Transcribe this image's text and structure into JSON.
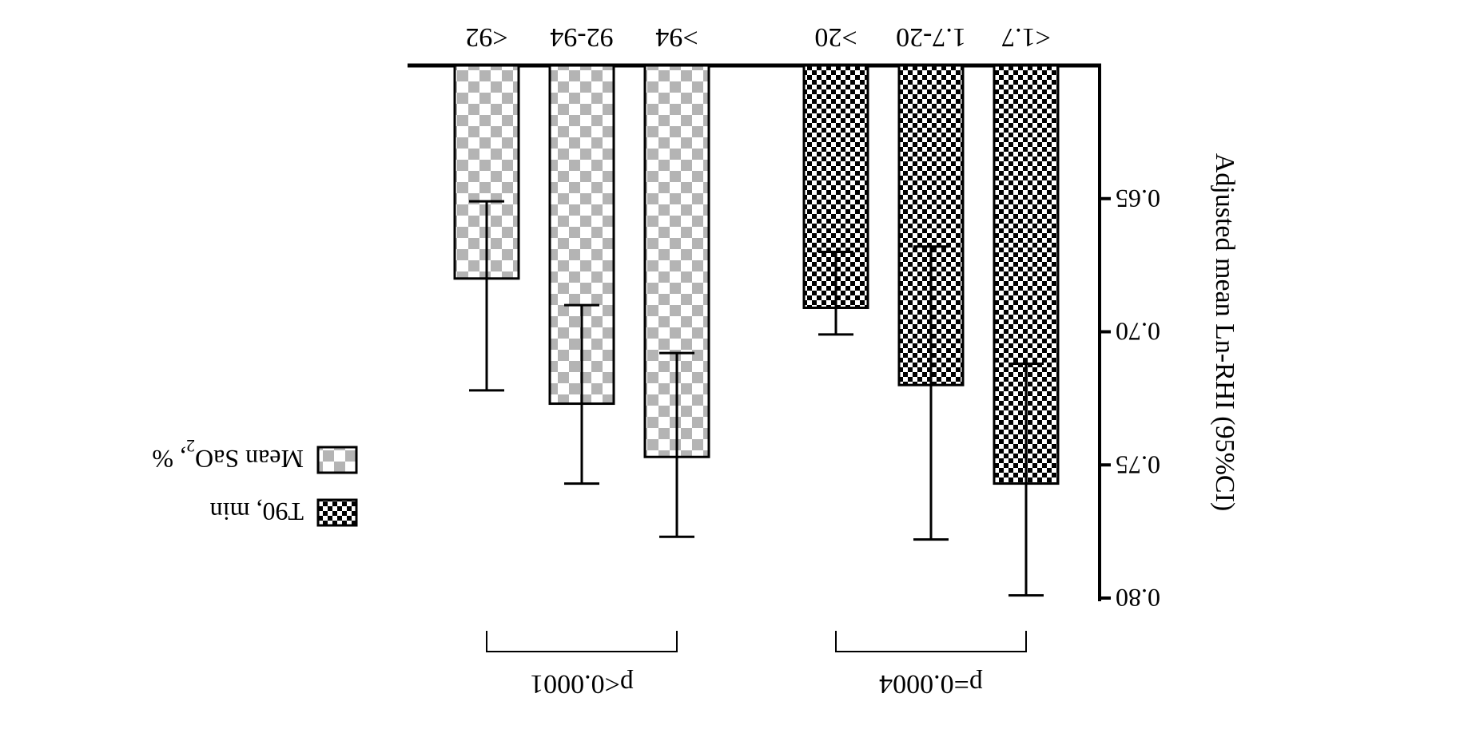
{
  "chart_data": {
    "type": "bar",
    "orientation": "rotated-180",
    "ylabel": "Adjusted mean Ln-RHI (95%CI)",
    "ylim": [
      0.6,
      0.8
    ],
    "yticks": [
      "0.65",
      "0.70",
      "0.75",
      "0.80"
    ],
    "ytick_values": [
      0.65,
      0.7,
      0.75,
      0.8
    ],
    "groups": [
      {
        "name": "T90, min",
        "pattern": "fine-checker",
        "categories": [
          "<1.7",
          "1.7-20",
          ">20"
        ],
        "values": [
          0.757,
          0.72,
          0.691
        ],
        "ci_low": [
          0.712,
          0.668,
          0.67
        ],
        "ci_high": [
          0.799,
          0.778,
          0.701
        ],
        "p_label": "p=0.0004"
      },
      {
        "name": "Mean SaO2, %",
        "pattern": "coarse-checker",
        "categories": [
          ">94",
          "92-94",
          "<92"
        ],
        "values": [
          0.747,
          0.727,
          0.68
        ],
        "ci_low": [
          0.708,
          0.69,
          0.651
        ],
        "ci_high": [
          0.777,
          0.757,
          0.722
        ],
        "p_label": "p<0.0001"
      }
    ],
    "legend": {
      "position": "bottom-left (rotated)",
      "items": [
        {
          "label": "T90, min",
          "pattern": "fine-checker"
        },
        {
          "label": "Mean SaO",
          "subscript": "2",
          "suffix": ", %",
          "pattern": "coarse-checker"
        }
      ]
    },
    "colors": {
      "axis": "#000000",
      "coarse_checker": "#b4b4b4",
      "fine_checker": "#000000",
      "background": "#ffffff"
    }
  }
}
